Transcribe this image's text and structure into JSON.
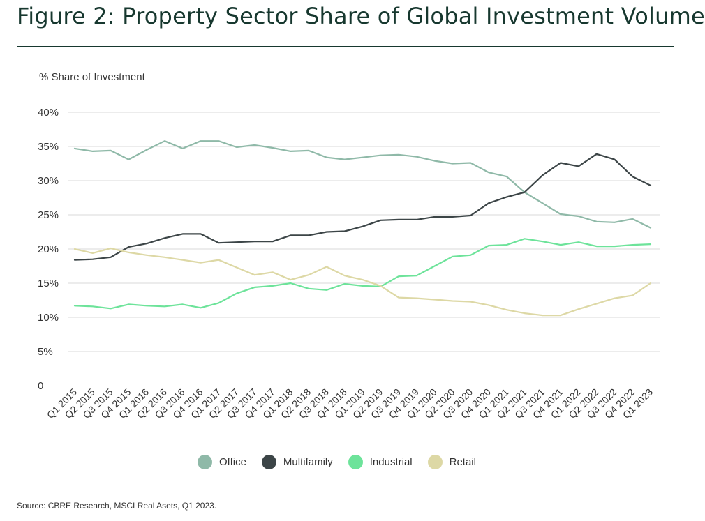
{
  "title": "Figure 2: Property Sector Share of Global Investment Volume",
  "source": "Source: CBRE Research, MSCI Real Asets, Q1 2023.",
  "chart_data": {
    "type": "line",
    "title": "Figure 2: Property Sector Share of Global Investment Volume",
    "ylabel": "% Share of Investment",
    "xlabel": "",
    "ylim": [
      0,
      40
    ],
    "yticks": [
      0,
      5,
      10,
      15,
      20,
      25,
      30,
      35,
      40
    ],
    "ytick_labels": [
      "0",
      "5%",
      "10%",
      "15%",
      "20%",
      "25%",
      "30%",
      "35%",
      "40%"
    ],
    "grid": true,
    "legend_position": "bottom-center",
    "categories": [
      "Q1 2015",
      "Q2 2015",
      "Q3 2015",
      "Q4 2015",
      "Q1 2016",
      "Q2 2016",
      "Q3 2016",
      "Q4 2016",
      "Q1 2017",
      "Q2 2017",
      "Q3 2017",
      "Q4 2017",
      "Q1 2018",
      "Q2 2018",
      "Q3 2018",
      "Q4 2018",
      "Q1 2019",
      "Q2 2019",
      "Q3 2019",
      "Q4 2019",
      "Q1 2020",
      "Q2 2020",
      "Q3 2020",
      "Q4 2020",
      "Q1 2021",
      "Q2 2021",
      "Q3 2021",
      "Q4 2021",
      "Q1 2022",
      "Q2 2022",
      "Q3 2022",
      "Q4 2022",
      "Q1 2023"
    ],
    "series": [
      {
        "name": "Office",
        "color": "#8fb9a8",
        "values": [
          34.7,
          34.3,
          34.4,
          33.1,
          34.5,
          35.8,
          34.7,
          35.8,
          35.8,
          34.9,
          35.2,
          34.8,
          34.3,
          34.4,
          33.4,
          33.1,
          33.4,
          33.7,
          33.8,
          33.5,
          32.9,
          32.5,
          32.6,
          31.2,
          30.6,
          28.3,
          26.7,
          25.1,
          24.8,
          24.0,
          23.9,
          24.4,
          23.1
        ]
      },
      {
        "name": "Multifamily",
        "color": "#3c4547",
        "values": [
          18.4,
          18.5,
          18.8,
          20.3,
          20.8,
          21.6,
          22.2,
          22.2,
          20.9,
          21.0,
          21.1,
          21.1,
          22.0,
          22.0,
          22.5,
          22.6,
          23.3,
          24.2,
          24.3,
          24.3,
          24.7,
          24.7,
          24.9,
          26.7,
          27.6,
          28.3,
          30.8,
          32.6,
          32.1,
          33.9,
          33.1,
          30.6,
          29.3
        ]
      },
      {
        "name": "Industrial",
        "color": "#6de39a",
        "values": [
          11.7,
          11.6,
          11.3,
          11.9,
          11.7,
          11.6,
          11.9,
          11.4,
          12.1,
          13.5,
          14.4,
          14.6,
          15.0,
          14.2,
          14.0,
          14.9,
          14.6,
          14.5,
          16.0,
          16.1,
          17.5,
          18.9,
          19.1,
          20.5,
          20.6,
          21.5,
          21.1,
          20.6,
          21.0,
          20.4,
          20.4,
          20.6,
          20.7
        ]
      },
      {
        "name": "Retail",
        "color": "#ddd8a5",
        "values": [
          20.0,
          19.4,
          20.1,
          19.5,
          19.1,
          18.8,
          18.4,
          18.0,
          18.4,
          17.3,
          16.2,
          16.6,
          15.5,
          16.2,
          17.4,
          16.1,
          15.5,
          14.6,
          12.9,
          12.8,
          12.6,
          12.4,
          12.3,
          11.8,
          11.1,
          10.6,
          10.3,
          10.3,
          11.2,
          12.0,
          12.8,
          13.2,
          15.0
        ]
      }
    ]
  }
}
